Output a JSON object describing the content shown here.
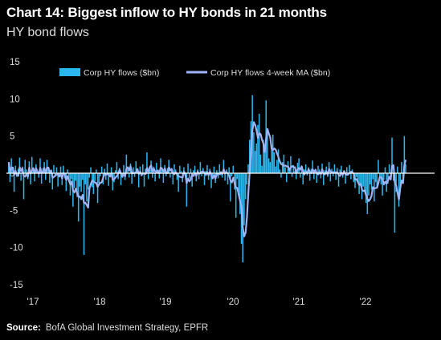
{
  "title": "Chart 14: Biggest inflow to HY bonds in 21 months",
  "subtitle": "HY bond flows",
  "source_label": "Source:",
  "source_text": "BofA Global Investment Strategy, EPFR",
  "colors": {
    "bars": "#2bb6ee",
    "ma": "#9db4f7",
    "background": "#000000",
    "zero_line": "#ffffff"
  },
  "chart_data": {
    "type": "bar",
    "ylim": [
      -15,
      15
    ],
    "yticks": [
      -15,
      -10,
      -5,
      0,
      5,
      10,
      15
    ],
    "xticks": [
      "'17",
      "'18",
      "'19",
      "'20",
      "'21",
      "'22"
    ],
    "xrange": [
      "2017-01",
      "2022-09"
    ],
    "legend_position": "top",
    "series": [
      {
        "name": "Corp HY flows ($bn)",
        "kind": "bar",
        "values": [
          1.5,
          -1.2,
          2.0,
          0.8,
          -2.5,
          1.0,
          -0.5,
          0.6,
          2.1,
          -1.0,
          0.9,
          -3.5,
          1.8,
          0.5,
          -0.8,
          1.6,
          -1.5,
          2.2,
          0.4,
          -1.1,
          1.2,
          0.3,
          -0.6,
          2.0,
          -1.4,
          0.7,
          1.5,
          -0.9,
          1.8,
          0.6,
          -1.3,
          0.4,
          -2.2,
          1.1,
          -0.5,
          0.8,
          -1.8,
          -0.3,
          0.9,
          -1.6,
          1.0,
          -0.7,
          -2.4,
          0.5,
          -1.2,
          -3.0,
          -0.8,
          -4.5,
          -2.0,
          -1.0,
          -3.2,
          -6.5,
          -1.8,
          -2.5,
          -0.9,
          -11.0,
          -1.5,
          -3.8,
          -2.2,
          -0.6,
          0.8,
          -1.9,
          -2.8,
          -1.1,
          0.5,
          -4.0,
          -1.3,
          -0.4,
          0.9,
          -1.5,
          0.6,
          -0.9,
          1.3,
          -1.7,
          -0.5,
          0.8,
          -2.3,
          -1.2,
          0.4,
          1.5,
          -0.8,
          0.7,
          -1.6,
          -0.3,
          1.1,
          -0.9,
          2.5,
          0.5,
          -0.6,
          1.3,
          -1.4,
          0.8,
          -0.5,
          1.6,
          0.3,
          -1.9,
          0.9,
          -0.4,
          1.2,
          -1.8,
          0.6,
          2.8,
          -0.8,
          0.5,
          1.7,
          -0.6,
          0.9,
          -1.1,
          1.4,
          0.3,
          -0.7,
          2.0,
          0.8,
          -1.3,
          1.1,
          -0.4,
          0.7,
          1.8,
          -0.6,
          0.4,
          -1.5,
          1.2,
          0.5,
          -0.9,
          -2.5,
          1.0,
          0.3,
          -1.2,
          0.8,
          -0.5,
          -4.5,
          1.3,
          -0.7,
          0.6,
          -1.8,
          0.4,
          1.0,
          -1.1,
          0.5,
          -0.8,
          1.5,
          -0.4,
          0.7,
          -1.6,
          0.3,
          1.1,
          -0.9,
          0.6,
          -2.0,
          -0.5,
          0.9,
          -1.3,
          0.4,
          -0.7,
          1.2,
          -0.3,
          -0.6,
          1.8,
          -1.0,
          0.5,
          -1.5,
          0.8,
          -3.8,
          -0.4,
          1.0,
          -2.2,
          -6.0,
          -0.8,
          -2.6,
          -5.5,
          -9.5,
          -12.0,
          -7.0,
          -3.5,
          -1.5,
          1.2,
          4.5,
          7.0,
          10.5,
          5.5,
          3.0,
          4.0,
          6.5,
          8.0,
          2.5,
          1.0,
          4.5,
          3.5,
          9.8,
          6.0,
          2.0,
          1.5,
          3.8,
          5.2,
          2.8,
          0.9,
          1.8,
          3.2,
          0.5,
          -0.6,
          1.5,
          2.5,
          0.8,
          -1.2,
          1.6,
          0.4,
          2.3,
          -0.5,
          1.1,
          0.3,
          -0.8,
          1.4,
          2.0,
          -0.6,
          0.9,
          -1.5,
          0.5,
          1.2,
          -0.3,
          0.8,
          -1.0,
          0.6,
          1.7,
          -0.8,
          0.4,
          -1.3,
          1.0,
          0.5,
          -0.7,
          1.3,
          -1.6,
          0.4,
          0.9,
          -0.5,
          1.5,
          -1.1,
          0.6,
          -0.4,
          1.2,
          -0.9,
          0.7,
          -1.8,
          0.5,
          1.0,
          -0.6,
          0.3,
          -1.4,
          0.8,
          -0.3,
          1.1,
          -0.8,
          0.5,
          -1.2,
          -2.0,
          -0.5,
          -1.0,
          -2.8,
          -1.5,
          -3.5,
          -1.8,
          -2.5,
          -4.0,
          -5.5,
          -3.0,
          -1.5,
          -2.2,
          -0.8,
          -3.8,
          -1.2,
          -2.0,
          1.8,
          -0.6,
          -1.5,
          -3.0,
          -0.9,
          0.8,
          -2.5,
          -1.4,
          1.2,
          -0.7,
          4.8,
          -1.0,
          -8.0,
          -2.5,
          0.9,
          -4.5,
          -1.8,
          1.5,
          -0.5,
          5.0,
          1.2
        ]
      },
      {
        "name": "Corp HY flows 4-week MA ($bn)",
        "kind": "line"
      }
    ]
  }
}
